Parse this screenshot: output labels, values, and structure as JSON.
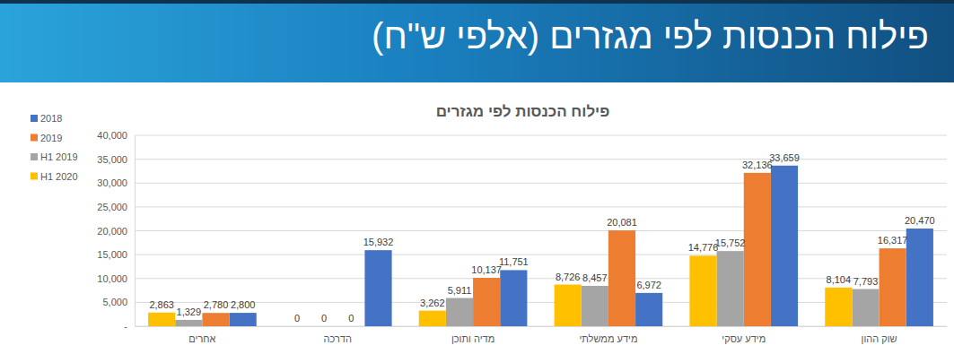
{
  "header": {
    "title": "פילוח הכנסות לפי מגזרים (אלפי ש\"ח)"
  },
  "chart_data": {
    "type": "bar",
    "title": "פילוח הכנסות לפי מגזרים",
    "categories": [
      "אחרים",
      "הדרכה",
      "מדיה ותוכן",
      "מידע ממשלתי",
      "מידע עסקי",
      "שוק ההון"
    ],
    "series": [
      {
        "name": "2018",
        "color": "#4472c4",
        "values": [
          2800,
          15932,
          11751,
          6972,
          33659,
          20470
        ],
        "value_labels": [
          "2,800",
          "15,932",
          "11,751",
          "6,972",
          "33,659",
          "20,470"
        ]
      },
      {
        "name": "2019",
        "color": "#ed7d31",
        "values": [
          2780,
          0,
          10137,
          20081,
          32136,
          16317
        ],
        "value_labels": [
          "2,780",
          "0",
          "10,137",
          "20,081",
          "32,136",
          "16,317"
        ]
      },
      {
        "name": "H1 2019",
        "color": "#a5a5a5",
        "values": [
          1329,
          0,
          5911,
          8457,
          15752,
          7793
        ],
        "value_labels": [
          "1,329",
          "0",
          "5,911",
          "8,457",
          "15,752",
          "7,793"
        ]
      },
      {
        "name": "H1 2020",
        "color": "#ffc000",
        "values": [
          2863,
          0,
          3262,
          8726,
          14776,
          8104
        ],
        "value_labels": [
          "2,863",
          "0",
          "3,262",
          "8,726",
          "14,776",
          "8,104"
        ]
      }
    ],
    "ylim": [
      0,
      40000
    ],
    "yticks": [
      {
        "value": 0,
        "label": "-"
      },
      {
        "value": 5000,
        "label": "5,000"
      },
      {
        "value": 10000,
        "label": "10,000"
      },
      {
        "value": 15000,
        "label": "15,000"
      },
      {
        "value": 20000,
        "label": "20,000"
      },
      {
        "value": 25000,
        "label": "25,000"
      },
      {
        "value": 30000,
        "label": "30,000"
      },
      {
        "value": 35000,
        "label": "35,000"
      },
      {
        "value": 40000,
        "label": "40,000"
      }
    ],
    "grid": true,
    "legend": "left",
    "data_labels": true
  }
}
